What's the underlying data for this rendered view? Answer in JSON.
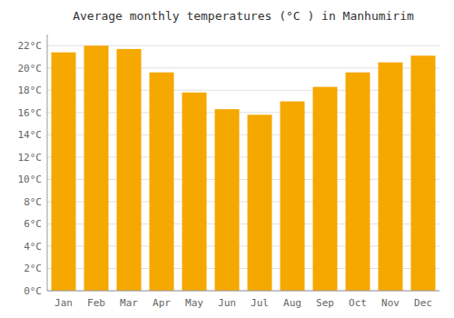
{
  "chart_data": {
    "type": "bar",
    "title": "Average monthly temperatures (°C ) in Manhumirim",
    "categories": [
      "Jan",
      "Feb",
      "Mar",
      "Apr",
      "May",
      "Jun",
      "Jul",
      "Aug",
      "Sep",
      "Oct",
      "Nov",
      "Dec"
    ],
    "values": [
      21.4,
      22.0,
      21.7,
      19.6,
      17.8,
      16.3,
      15.8,
      17.0,
      18.3,
      19.6,
      20.5,
      21.1
    ],
    "color": "#F5A800",
    "ylim": [
      0,
      23
    ],
    "yticks": [
      {
        "value": 0,
        "label": "0°C"
      },
      {
        "value": 2,
        "label": "2°C"
      },
      {
        "value": 4,
        "label": "4°C"
      },
      {
        "value": 6,
        "label": "6°C"
      },
      {
        "value": 8,
        "label": "8°C"
      },
      {
        "value": 10,
        "label": "10°C"
      },
      {
        "value": 12,
        "label": "12°C"
      },
      {
        "value": 14,
        "label": "14°C"
      },
      {
        "value": 16,
        "label": "16°C"
      },
      {
        "value": 18,
        "label": "18°C"
      },
      {
        "value": 20,
        "label": "20°C"
      },
      {
        "value": 22,
        "label": "22°C"
      }
    ],
    "grid": true
  }
}
